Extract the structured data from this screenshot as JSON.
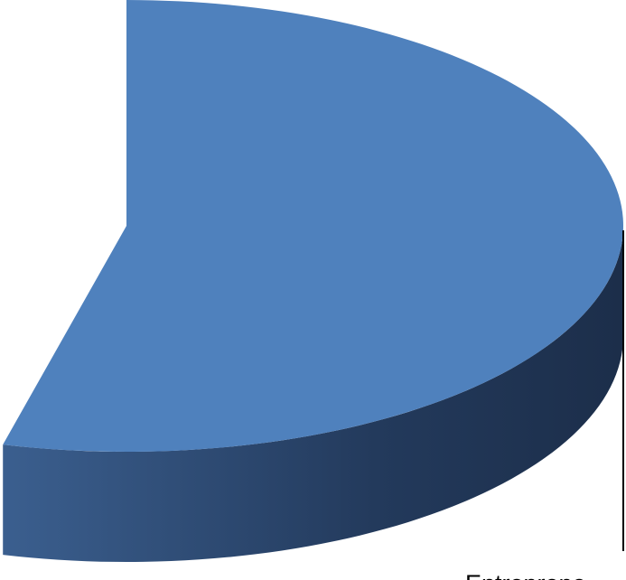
{
  "chart_data": {
    "type": "pie",
    "categories": [
      "Entreprene"
    ],
    "values": [
      54
    ],
    "color": "#4f81bd"
  }
}
